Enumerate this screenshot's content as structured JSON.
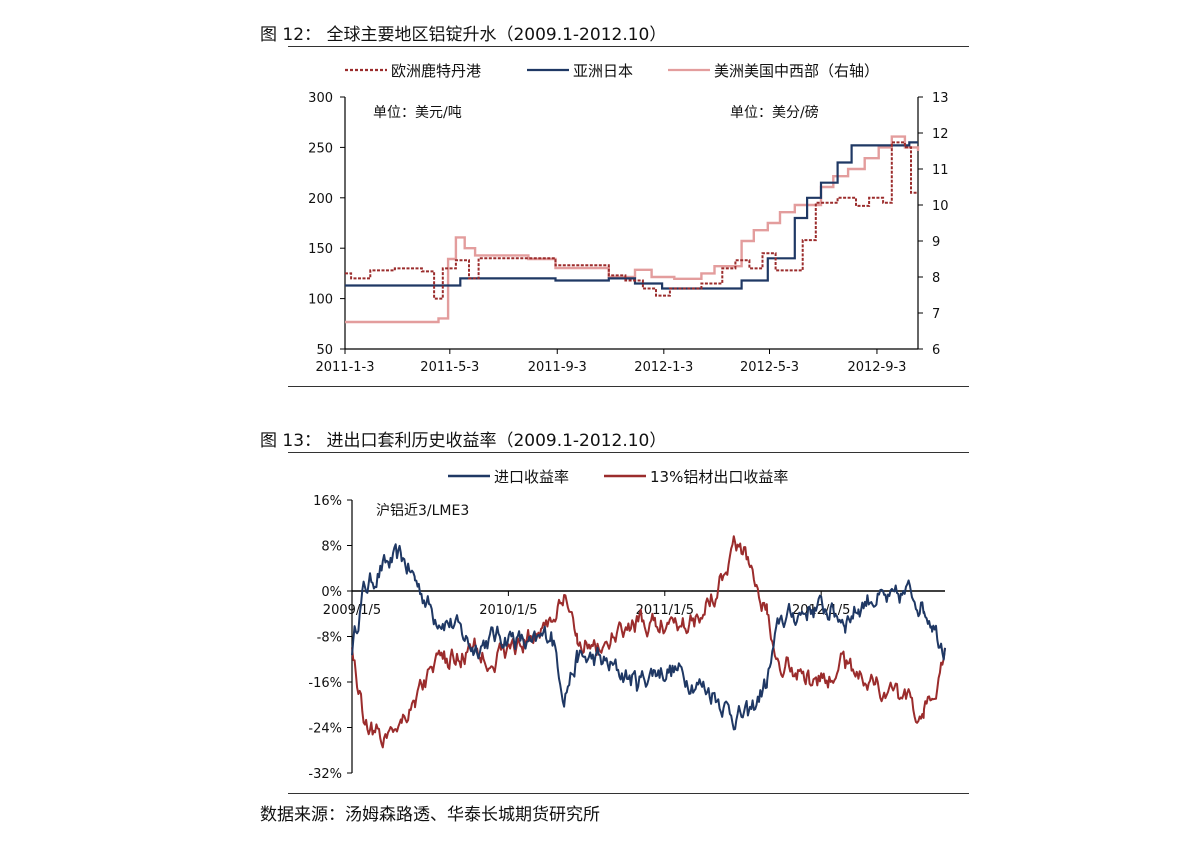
{
  "figure12": {
    "title": "图 12： 全球主要地区铝锭升水（2009.1-2012.10）"
  },
  "figure13": {
    "title": "图 13： 进出口套利历史收益率（2009.1-2012.10）"
  },
  "source": "数据来源：汤姆森路透、华泰长城期货研究所",
  "colors": {
    "europe": "#9B2C2C",
    "asia": "#1F3864",
    "us": "#E39D9D",
    "import": "#1F3864",
    "export": "#9B2C2C",
    "axis": "#000000"
  },
  "chart_data": [
    {
      "type": "line",
      "legend_position": "top",
      "grid": false,
      "annotation_left": "单位：美元/吨",
      "annotation_right": "单位：美分/磅",
      "x_ticks": [
        "2011-1-3",
        "2011-5-3",
        "2011-9-3",
        "2012-1-3",
        "2012-5-3",
        "2012-9-3"
      ],
      "xlim": [
        "2011-01-03",
        "2012-10-20"
      ],
      "ylim_left": [
        50,
        300
      ],
      "y_ticks_left": [
        "300",
        "250",
        "200",
        "150",
        "100",
        "50"
      ],
      "ylim_right": [
        6,
        13
      ],
      "y_ticks_right": [
        "13",
        "12",
        "11",
        "10",
        "9",
        "8",
        "7",
        "6"
      ],
      "series": [
        {
          "name": "欧洲鹿特丹港",
          "axis": "left",
          "style": "dashed",
          "points": [
            [
              "2011-01-03",
              125
            ],
            [
              "2011-01-10",
              120
            ],
            [
              "2011-02-01",
              128
            ],
            [
              "2011-03-01",
              130
            ],
            [
              "2011-04-01",
              127
            ],
            [
              "2011-04-15",
              100
            ],
            [
              "2011-04-25",
              130
            ],
            [
              "2011-05-10",
              138
            ],
            [
              "2011-05-25",
              120
            ],
            [
              "2011-06-05",
              140
            ],
            [
              "2011-07-01",
              140
            ],
            [
              "2011-08-10",
              140
            ],
            [
              "2011-09-01",
              133
            ],
            [
              "2011-10-01",
              133
            ],
            [
              "2011-11-01",
              123
            ],
            [
              "2011-11-20",
              118
            ],
            [
              "2011-12-10",
              110
            ],
            [
              "2011-12-25",
              103
            ],
            [
              "2012-01-10",
              110
            ],
            [
              "2012-02-15",
              115
            ],
            [
              "2012-03-10",
              130
            ],
            [
              "2012-03-25",
              138
            ],
            [
              "2012-04-10",
              130
            ],
            [
              "2012-04-25",
              145
            ],
            [
              "2012-05-10",
              128
            ],
            [
              "2012-05-25",
              128
            ],
            [
              "2012-06-10",
              158
            ],
            [
              "2012-06-25",
              195
            ],
            [
              "2012-07-20",
              200
            ],
            [
              "2012-08-10",
              192
            ],
            [
              "2012-08-25",
              200
            ],
            [
              "2012-09-10",
              195
            ],
            [
              "2012-09-20",
              255
            ],
            [
              "2012-10-05",
              250
            ],
            [
              "2012-10-12",
              205
            ],
            [
              "2012-10-20",
              205
            ]
          ]
        },
        {
          "name": "亚洲日本",
          "axis": "left",
          "style": "solid",
          "points": [
            [
              "2011-01-03",
              113
            ],
            [
              "2011-05-01",
              113
            ],
            [
              "2011-05-15",
              120
            ],
            [
              "2011-08-01",
              120
            ],
            [
              "2011-09-01",
              118
            ],
            [
              "2011-11-01",
              120
            ],
            [
              "2011-12-01",
              115
            ],
            [
              "2012-01-01",
              110
            ],
            [
              "2012-03-01",
              110
            ],
            [
              "2012-04-01",
              118
            ],
            [
              "2012-05-01",
              140
            ],
            [
              "2012-06-01",
              180
            ],
            [
              "2012-06-15",
              200
            ],
            [
              "2012-07-01",
              215
            ],
            [
              "2012-07-20",
              235
            ],
            [
              "2012-08-05",
              252
            ],
            [
              "2012-10-01",
              252
            ],
            [
              "2012-10-10",
              255
            ],
            [
              "2012-10-20",
              255
            ]
          ]
        },
        {
          "name": "美洲美国中西部（右轴）",
          "axis": "right",
          "style": "solid",
          "points": [
            [
              "2011-01-03",
              6.75
            ],
            [
              "2011-04-01",
              6.75
            ],
            [
              "2011-04-20",
              6.85
            ],
            [
              "2011-05-01",
              8.5
            ],
            [
              "2011-05-10",
              9.1
            ],
            [
              "2011-05-20",
              8.8
            ],
            [
              "2011-06-01",
              8.6
            ],
            [
              "2011-08-01",
              8.5
            ],
            [
              "2011-09-01",
              8.25
            ],
            [
              "2011-10-15",
              8.25
            ],
            [
              "2011-11-01",
              8.0
            ],
            [
              "2011-12-01",
              8.2
            ],
            [
              "2011-12-20",
              8.0
            ],
            [
              "2012-01-15",
              7.95
            ],
            [
              "2012-02-15",
              8.1
            ],
            [
              "2012-03-01",
              8.3
            ],
            [
              "2012-04-01",
              9.0
            ],
            [
              "2012-04-15",
              9.3
            ],
            [
              "2012-05-01",
              9.5
            ],
            [
              "2012-05-15",
              9.8
            ],
            [
              "2012-06-01",
              10.0
            ],
            [
              "2012-07-01",
              10.5
            ],
            [
              "2012-07-15",
              10.8
            ],
            [
              "2012-08-01",
              11.0
            ],
            [
              "2012-08-20",
              11.3
            ],
            [
              "2012-09-05",
              11.6
            ],
            [
              "2012-09-20",
              11.9
            ],
            [
              "2012-10-05",
              11.6
            ],
            [
              "2012-10-20",
              11.5
            ]
          ]
        }
      ]
    },
    {
      "type": "line",
      "legend_position": "top",
      "grid": false,
      "annotation": "沪铝近3/LME3",
      "x_ticks": [
        "2009/1/5",
        "2010/1/5",
        "2011/1/5",
        "2012/1/5"
      ],
      "xlim": [
        "2009-01-05",
        "2012-10-20"
      ],
      "ylim": [
        -32,
        16
      ],
      "y_ticks": [
        "16%",
        "8%",
        "0%",
        "-8%",
        "-16%",
        "-24%",
        "-32%"
      ],
      "series": [
        {
          "name": "进口收益率",
          "points": [
            [
              "2009-01-05",
              -10
            ],
            [
              "2009-02-01",
              0
            ],
            [
              "2009-03-15",
              4
            ],
            [
              "2009-05-01",
              6
            ],
            [
              "2009-06-01",
              2
            ],
            [
              "2009-07-15",
              -4
            ],
            [
              "2009-09-01",
              -6
            ],
            [
              "2009-10-15",
              -10
            ],
            [
              "2009-12-01",
              -8
            ],
            [
              "2010-01-15",
              -8
            ],
            [
              "2010-03-01",
              -10
            ],
            [
              "2010-04-15",
              -7
            ],
            [
              "2010-05-15",
              -18
            ],
            [
              "2010-06-15",
              -12
            ],
            [
              "2010-08-01",
              -12
            ],
            [
              "2010-09-15",
              -14
            ],
            [
              "2010-11-01",
              -16
            ],
            [
              "2010-12-15",
              -14
            ],
            [
              "2011-02-01",
              -14
            ],
            [
              "2011-03-15",
              -16
            ],
            [
              "2011-05-01",
              -18
            ],
            [
              "2011-06-15",
              -22
            ],
            [
              "2011-07-20",
              -22
            ],
            [
              "2011-09-01",
              -16
            ],
            [
              "2011-10-01",
              -5
            ],
            [
              "2011-11-15",
              -4
            ],
            [
              "2011-12-15",
              -3
            ],
            [
              "2012-01-15",
              -3
            ],
            [
              "2012-03-01",
              -5
            ],
            [
              "2012-04-01",
              -3
            ],
            [
              "2012-05-01",
              -1
            ],
            [
              "2012-06-15",
              -2
            ],
            [
              "2012-08-01",
              0
            ],
            [
              "2012-09-01",
              -3
            ],
            [
              "2012-09-20",
              -5
            ],
            [
              "2012-10-05",
              -8
            ],
            [
              "2012-10-20",
              -10
            ]
          ]
        },
        {
          "name": "13%铝材出口收益率",
          "points": [
            [
              "2009-01-05",
              -10
            ],
            [
              "2009-02-01",
              -22
            ],
            [
              "2009-03-15",
              -26
            ],
            [
              "2009-05-01",
              -22
            ],
            [
              "2009-06-01",
              -19
            ],
            [
              "2009-07-15",
              -13
            ],
            [
              "2009-09-01",
              -12
            ],
            [
              "2009-10-15",
              -10
            ],
            [
              "2009-12-01",
              -12
            ],
            [
              "2010-01-15",
              -10
            ],
            [
              "2010-03-01",
              -8
            ],
            [
              "2010-04-15",
              -5
            ],
            [
              "2010-05-15",
              -2
            ],
            [
              "2010-06-15",
              -8
            ],
            [
              "2010-08-01",
              -10
            ],
            [
              "2010-09-15",
              -8
            ],
            [
              "2010-11-01",
              -6
            ],
            [
              "2010-12-15",
              -6
            ],
            [
              "2011-02-01",
              -5
            ],
            [
              "2011-03-15",
              -5
            ],
            [
              "2011-05-01",
              0
            ],
            [
              "2011-06-15",
              8
            ],
            [
              "2011-07-20",
              6
            ],
            [
              "2011-09-01",
              -4
            ],
            [
              "2011-10-01",
              -12
            ],
            [
              "2011-11-15",
              -14
            ],
            [
              "2011-12-15",
              -16
            ],
            [
              "2012-01-15",
              -16
            ],
            [
              "2012-03-01",
              -12
            ],
            [
              "2012-04-01",
              -14
            ],
            [
              "2012-05-01",
              -16
            ],
            [
              "2012-06-15",
              -18
            ],
            [
              "2012-08-01",
              -20
            ],
            [
              "2012-09-01",
              -22
            ],
            [
              "2012-09-20",
              -20
            ],
            [
              "2012-10-05",
              -15
            ],
            [
              "2012-10-20",
              -10
            ]
          ]
        }
      ]
    }
  ]
}
